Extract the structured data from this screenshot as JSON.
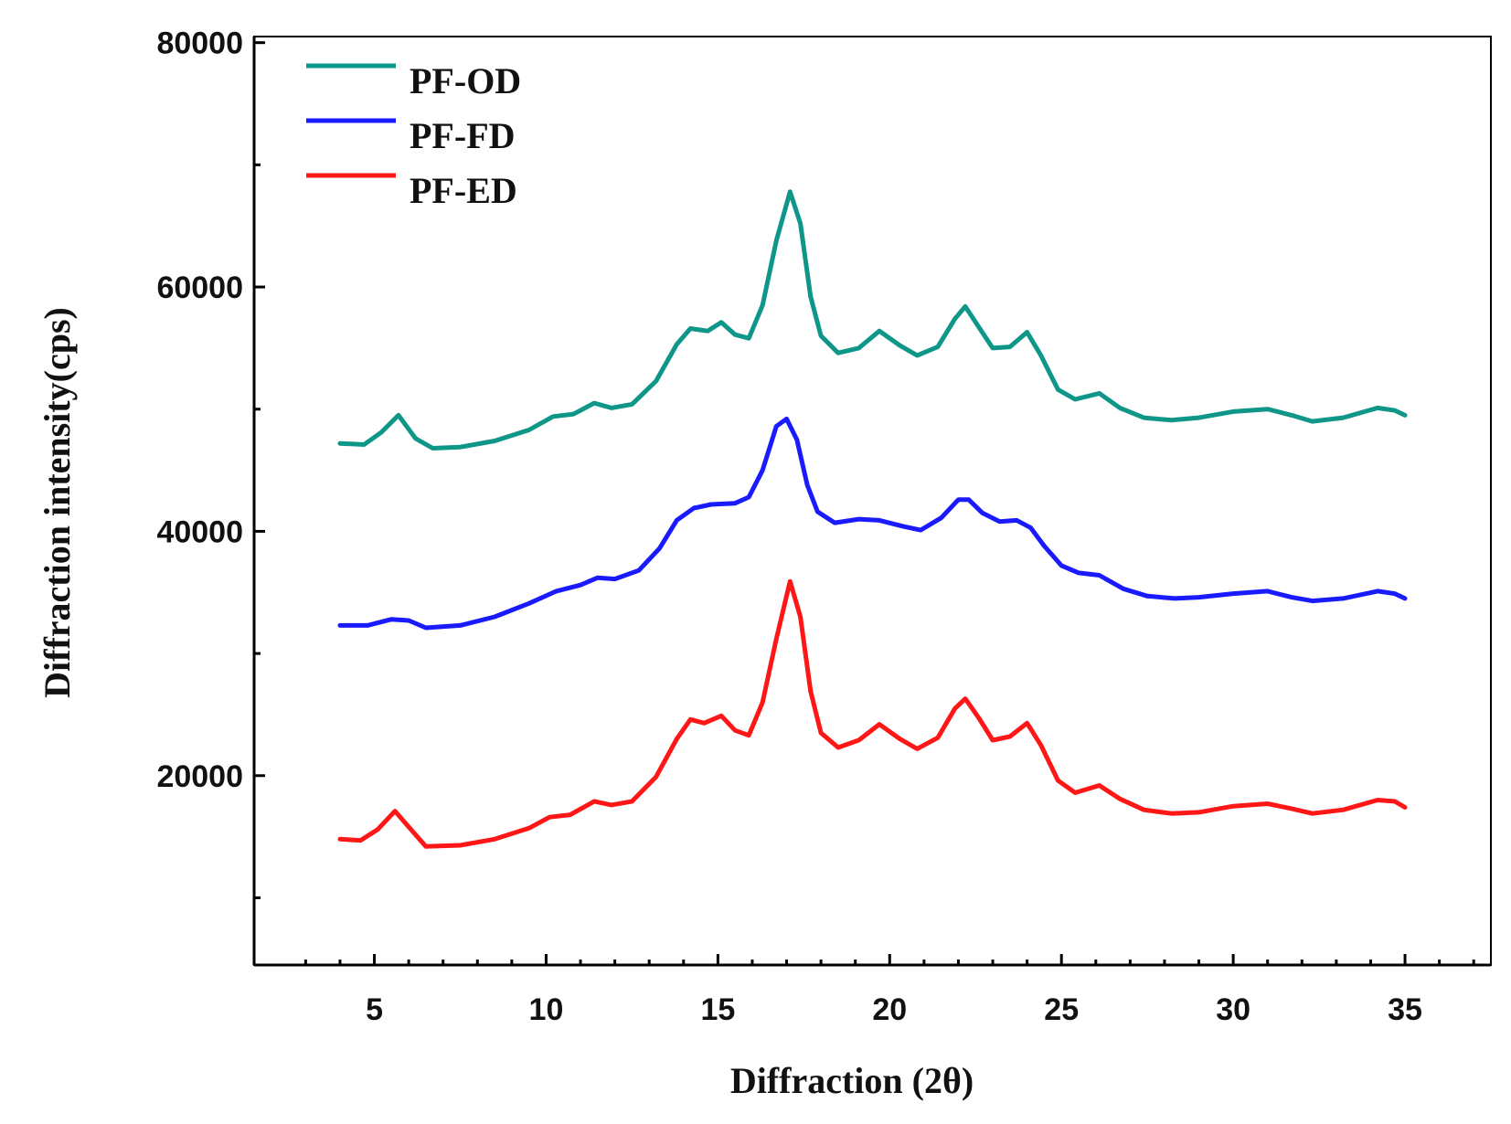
{
  "chart_data": {
    "type": "line",
    "title": "",
    "xlabel": "Diffraction (2θ)",
    "ylabel": "Diffraction intensity(cps)",
    "xlim": [
      1.5,
      37.5
    ],
    "ylim": [
      4500,
      80500
    ],
    "x_ticks": [
      5,
      10,
      15,
      20,
      25,
      30,
      35
    ],
    "x_tick_labels": [
      "5",
      "10",
      "15",
      "20",
      "25",
      "30",
      "35"
    ],
    "y_ticks": [
      20000,
      40000,
      60000,
      80000
    ],
    "y_tick_labels": [
      "20000",
      "40000",
      "60000",
      "80000"
    ],
    "grid": false,
    "legend_position": "top-left",
    "series": [
      {
        "name": "PF-OD",
        "color": "#0e9688",
        "points": [
          [
            4,
            47200
          ],
          [
            4.7,
            47100
          ],
          [
            5.2,
            48100
          ],
          [
            5.7,
            49500
          ],
          [
            6.2,
            47600
          ],
          [
            6.7,
            46800
          ],
          [
            7.5,
            46900
          ],
          [
            8.5,
            47400
          ],
          [
            9.5,
            48300
          ],
          [
            10.2,
            49400
          ],
          [
            10.8,
            49600
          ],
          [
            11.4,
            50500
          ],
          [
            11.9,
            50100
          ],
          [
            12.5,
            50400
          ],
          [
            13.2,
            52300
          ],
          [
            13.8,
            55300
          ],
          [
            14.2,
            56600
          ],
          [
            14.7,
            56400
          ],
          [
            15.1,
            57100
          ],
          [
            15.5,
            56100
          ],
          [
            15.9,
            55800
          ],
          [
            16.3,
            58500
          ],
          [
            16.7,
            63800
          ],
          [
            17.1,
            67800
          ],
          [
            17.4,
            65200
          ],
          [
            17.7,
            59200
          ],
          [
            18.0,
            56000
          ],
          [
            18.5,
            54600
          ],
          [
            19.1,
            55000
          ],
          [
            19.7,
            56400
          ],
          [
            20.3,
            55200
          ],
          [
            20.8,
            54400
          ],
          [
            21.4,
            55100
          ],
          [
            21.9,
            57400
          ],
          [
            22.2,
            58400
          ],
          [
            22.6,
            56700
          ],
          [
            23.0,
            55000
          ],
          [
            23.5,
            55100
          ],
          [
            24.0,
            56300
          ],
          [
            24.4,
            54400
          ],
          [
            24.9,
            51600
          ],
          [
            25.4,
            50800
          ],
          [
            26.1,
            51300
          ],
          [
            26.7,
            50100
          ],
          [
            27.4,
            49300
          ],
          [
            28.2,
            49100
          ],
          [
            29.0,
            49300
          ],
          [
            30.0,
            49800
          ],
          [
            31.0,
            50000
          ],
          [
            31.7,
            49500
          ],
          [
            32.3,
            49000
          ],
          [
            33.2,
            49300
          ],
          [
            34.2,
            50100
          ],
          [
            34.7,
            49900
          ],
          [
            35.0,
            49500
          ]
        ]
      },
      {
        "name": "PF-FD",
        "color": "#1a1aff",
        "points": [
          [
            4,
            32300
          ],
          [
            4.8,
            32300
          ],
          [
            5.5,
            32800
          ],
          [
            6.0,
            32700
          ],
          [
            6.5,
            32100
          ],
          [
            7.5,
            32300
          ],
          [
            8.5,
            33000
          ],
          [
            9.5,
            34100
          ],
          [
            10.3,
            35100
          ],
          [
            11.0,
            35600
          ],
          [
            11.5,
            36200
          ],
          [
            12.0,
            36100
          ],
          [
            12.7,
            36800
          ],
          [
            13.3,
            38600
          ],
          [
            13.8,
            40900
          ],
          [
            14.3,
            41900
          ],
          [
            14.8,
            42200
          ],
          [
            15.5,
            42300
          ],
          [
            15.9,
            42800
          ],
          [
            16.3,
            45000
          ],
          [
            16.7,
            48600
          ],
          [
            17.0,
            49200
          ],
          [
            17.3,
            47500
          ],
          [
            17.6,
            43800
          ],
          [
            17.9,
            41600
          ],
          [
            18.4,
            40700
          ],
          [
            19.1,
            41000
          ],
          [
            19.7,
            40900
          ],
          [
            20.4,
            40400
          ],
          [
            20.9,
            40100
          ],
          [
            21.5,
            41100
          ],
          [
            22.0,
            42600
          ],
          [
            22.3,
            42600
          ],
          [
            22.7,
            41500
          ],
          [
            23.2,
            40800
          ],
          [
            23.7,
            40900
          ],
          [
            24.1,
            40300
          ],
          [
            24.5,
            38800
          ],
          [
            25.0,
            37200
          ],
          [
            25.5,
            36600
          ],
          [
            26.1,
            36400
          ],
          [
            26.8,
            35300
          ],
          [
            27.5,
            34700
          ],
          [
            28.3,
            34500
          ],
          [
            29.0,
            34600
          ],
          [
            30.0,
            34900
          ],
          [
            31.0,
            35100
          ],
          [
            31.7,
            34600
          ],
          [
            32.3,
            34300
          ],
          [
            33.2,
            34500
          ],
          [
            34.2,
            35100
          ],
          [
            34.7,
            34900
          ],
          [
            35.0,
            34500
          ]
        ]
      },
      {
        "name": "PF-ED",
        "color": "#ff1616",
        "points": [
          [
            4,
            14800
          ],
          [
            4.6,
            14700
          ],
          [
            5.1,
            15600
          ],
          [
            5.6,
            17100
          ],
          [
            6.0,
            15800
          ],
          [
            6.5,
            14200
          ],
          [
            7.5,
            14300
          ],
          [
            8.5,
            14800
          ],
          [
            9.5,
            15700
          ],
          [
            10.1,
            16600
          ],
          [
            10.7,
            16800
          ],
          [
            11.4,
            17900
          ],
          [
            11.9,
            17600
          ],
          [
            12.5,
            17900
          ],
          [
            13.2,
            19900
          ],
          [
            13.8,
            23000
          ],
          [
            14.2,
            24600
          ],
          [
            14.6,
            24300
          ],
          [
            15.1,
            24900
          ],
          [
            15.5,
            23700
          ],
          [
            15.9,
            23300
          ],
          [
            16.3,
            26000
          ],
          [
            16.7,
            31200
          ],
          [
            17.1,
            35900
          ],
          [
            17.4,
            33000
          ],
          [
            17.7,
            26900
          ],
          [
            18.0,
            23500
          ],
          [
            18.5,
            22300
          ],
          [
            19.1,
            22900
          ],
          [
            19.7,
            24200
          ],
          [
            20.3,
            23000
          ],
          [
            20.8,
            22200
          ],
          [
            21.4,
            23100
          ],
          [
            21.9,
            25500
          ],
          [
            22.2,
            26300
          ],
          [
            22.6,
            24700
          ],
          [
            23.0,
            22900
          ],
          [
            23.5,
            23200
          ],
          [
            24.0,
            24300
          ],
          [
            24.4,
            22500
          ],
          [
            24.9,
            19600
          ],
          [
            25.4,
            18600
          ],
          [
            26.1,
            19200
          ],
          [
            26.7,
            18100
          ],
          [
            27.4,
            17200
          ],
          [
            28.2,
            16900
          ],
          [
            29.0,
            17000
          ],
          [
            30.0,
            17500
          ],
          [
            31.0,
            17700
          ],
          [
            31.7,
            17300
          ],
          [
            32.3,
            16900
          ],
          [
            33.2,
            17200
          ],
          [
            34.2,
            18000
          ],
          [
            34.7,
            17900
          ],
          [
            35.0,
            17400
          ]
        ]
      }
    ]
  }
}
